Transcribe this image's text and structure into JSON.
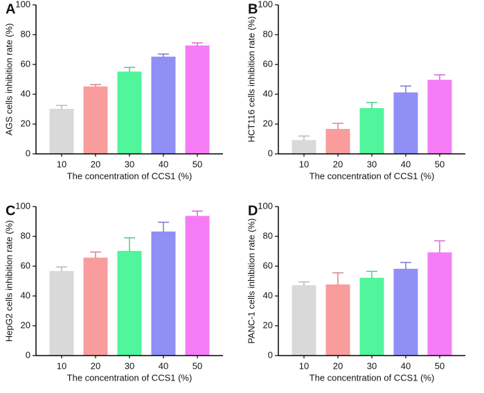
{
  "chart_data": [
    {
      "type": "bar",
      "label": "A",
      "ylabel": "AGS cells inhibition rate (%)",
      "xlabel": "The concentration of CCS1 (%)",
      "categories": [
        "10",
        "20",
        "30",
        "40",
        "50"
      ],
      "values": [
        30,
        45,
        55,
        65,
        72.5
      ],
      "errors": [
        2.5,
        1.5,
        3,
        2,
        2
      ],
      "colors": [
        "#d9d9d9",
        "#f99c9c",
        "#50f59c",
        "#8f8ff5",
        "#f57cf5"
      ],
      "ylim": [
        0,
        100
      ],
      "yticks": [
        0,
        20,
        40,
        60,
        80,
        100
      ]
    },
    {
      "type": "bar",
      "label": "B",
      "ylabel": "HCT116 cells inhibition rate (%)",
      "xlabel": "The concentration of CCS1 (%)",
      "categories": [
        "10",
        "20",
        "30",
        "40",
        "50"
      ],
      "values": [
        9,
        16.5,
        30.5,
        41,
        49.5
      ],
      "errors": [
        3,
        4,
        4,
        4.5,
        3.5
      ],
      "colors": [
        "#d9d9d9",
        "#f99c9c",
        "#50f59c",
        "#8f8ff5",
        "#f57cf5"
      ],
      "ylim": [
        0,
        100
      ],
      "yticks": [
        0,
        20,
        40,
        60,
        80,
        100
      ]
    },
    {
      "type": "bar",
      "label": "C",
      "ylabel": "HepG2 cells inhibition rate (%)",
      "xlabel": "The concentration of CCS1 (%)",
      "categories": [
        "10",
        "20",
        "30",
        "40",
        "50"
      ],
      "values": [
        56.5,
        65.5,
        70,
        83,
        93.5
      ],
      "errors": [
        3,
        4,
        9,
        6.5,
        3.5
      ],
      "colors": [
        "#d9d9d9",
        "#f99c9c",
        "#50f59c",
        "#8f8ff5",
        "#f57cf5"
      ],
      "ylim": [
        0,
        100
      ],
      "yticks": [
        0,
        20,
        40,
        60,
        80,
        100
      ]
    },
    {
      "type": "bar",
      "label": "D",
      "ylabel": "PANC-1 cells inhibition rate (%)",
      "xlabel": "The concentration of CCS1 (%)",
      "categories": [
        "10",
        "20",
        "30",
        "40",
        "50"
      ],
      "values": [
        47,
        47.5,
        52,
        58,
        69
      ],
      "errors": [
        2.5,
        8,
        4.5,
        4.5,
        8
      ],
      "colors": [
        "#d9d9d9",
        "#f99c9c",
        "#50f59c",
        "#8f8ff5",
        "#f57cf5"
      ],
      "ylim": [
        0,
        100
      ],
      "yticks": [
        0,
        20,
        40,
        60,
        80,
        100
      ]
    }
  ]
}
